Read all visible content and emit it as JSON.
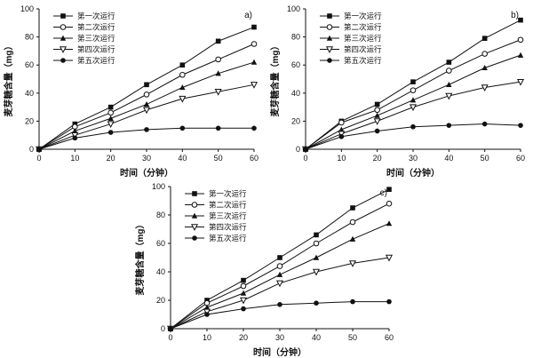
{
  "colors": {
    "line": "#111111",
    "background": "#ffffff"
  },
  "chart_data": [
    {
      "type": "line",
      "panel_label": "a)",
      "xlabel": "时间（分钟）",
      "ylabel": "麦芽糖含量（mg）",
      "xlim": [
        0,
        60
      ],
      "ylim": [
        0,
        100
      ],
      "xticks": [
        0,
        10,
        20,
        30,
        40,
        50,
        60
      ],
      "yticks": [
        0,
        20,
        40,
        60,
        80,
        100
      ],
      "x": [
        0,
        10,
        20,
        30,
        40,
        50,
        60
      ],
      "legend_position": "top-left",
      "grid": false,
      "series": [
        {
          "name": "第一次运行",
          "marker": "square-filled",
          "values": [
            0,
            18,
            30,
            46,
            60,
            77,
            87
          ]
        },
        {
          "name": "第二次运行",
          "marker": "circle-open",
          "values": [
            0,
            16,
            26,
            39,
            53,
            64,
            75
          ]
        },
        {
          "name": "第三次运行",
          "marker": "triangle-filled",
          "values": [
            0,
            13,
            22,
            32,
            44,
            54,
            62
          ]
        },
        {
          "name": "第四次运行",
          "marker": "triangle-down-open",
          "values": [
            0,
            10,
            18,
            28,
            36,
            41,
            46
          ]
        },
        {
          "name": "第五次运行",
          "marker": "circle-filled",
          "values": [
            0,
            8,
            12,
            14,
            15,
            15,
            15
          ]
        }
      ]
    },
    {
      "type": "line",
      "panel_label": "b)",
      "xlabel": "时间（分钟）",
      "ylabel": "麦芽糖含量（mg）",
      "xlim": [
        0,
        60
      ],
      "ylim": [
        0,
        100
      ],
      "xticks": [
        0,
        10,
        20,
        30,
        40,
        50,
        60
      ],
      "yticks": [
        0,
        20,
        40,
        60,
        80,
        100
      ],
      "x": [
        0,
        10,
        20,
        30,
        40,
        50,
        60
      ],
      "legend_position": "top-left",
      "grid": false,
      "series": [
        {
          "name": "第一次运行",
          "marker": "square-filled",
          "values": [
            0,
            20,
            32,
            48,
            62,
            79,
            92
          ]
        },
        {
          "name": "第二次运行",
          "marker": "circle-open",
          "values": [
            0,
            19,
            28,
            42,
            56,
            68,
            78
          ]
        },
        {
          "name": "第三次运行",
          "marker": "triangle-filled",
          "values": [
            0,
            14,
            24,
            35,
            46,
            58,
            67
          ]
        },
        {
          "name": "第四次运行",
          "marker": "triangle-down-open",
          "values": [
            0,
            11,
            20,
            30,
            38,
            44,
            48
          ]
        },
        {
          "name": "第五次运行",
          "marker": "circle-filled",
          "values": [
            0,
            9,
            13,
            16,
            17,
            18,
            17
          ]
        }
      ]
    },
    {
      "type": "line",
      "panel_label": "c)",
      "xlabel": "时间（分钟）",
      "ylabel": "麦芽糖含量（mg）",
      "xlim": [
        0,
        60
      ],
      "ylim": [
        0,
        100
      ],
      "xticks": [
        0,
        10,
        20,
        30,
        40,
        50,
        60
      ],
      "yticks": [
        0,
        20,
        40,
        60,
        80,
        100
      ],
      "x": [
        0,
        10,
        20,
        30,
        40,
        50,
        60
      ],
      "legend_position": "top-left",
      "grid": false,
      "series": [
        {
          "name": "第一次运行",
          "marker": "square-filled",
          "values": [
            0,
            20,
            34,
            50,
            66,
            85,
            98
          ]
        },
        {
          "name": "第二次运行",
          "marker": "circle-open",
          "values": [
            0,
            18,
            30,
            44,
            60,
            75,
            88
          ]
        },
        {
          "name": "第三次运行",
          "marker": "triangle-filled",
          "values": [
            0,
            15,
            25,
            38,
            50,
            63,
            74
          ]
        },
        {
          "name": "第四次运行",
          "marker": "triangle-down-open",
          "values": [
            0,
            12,
            20,
            32,
            40,
            46,
            50
          ]
        },
        {
          "name": "第五次运行",
          "marker": "circle-filled",
          "values": [
            0,
            10,
            14,
            17,
            18,
            19,
            19
          ]
        }
      ]
    }
  ]
}
